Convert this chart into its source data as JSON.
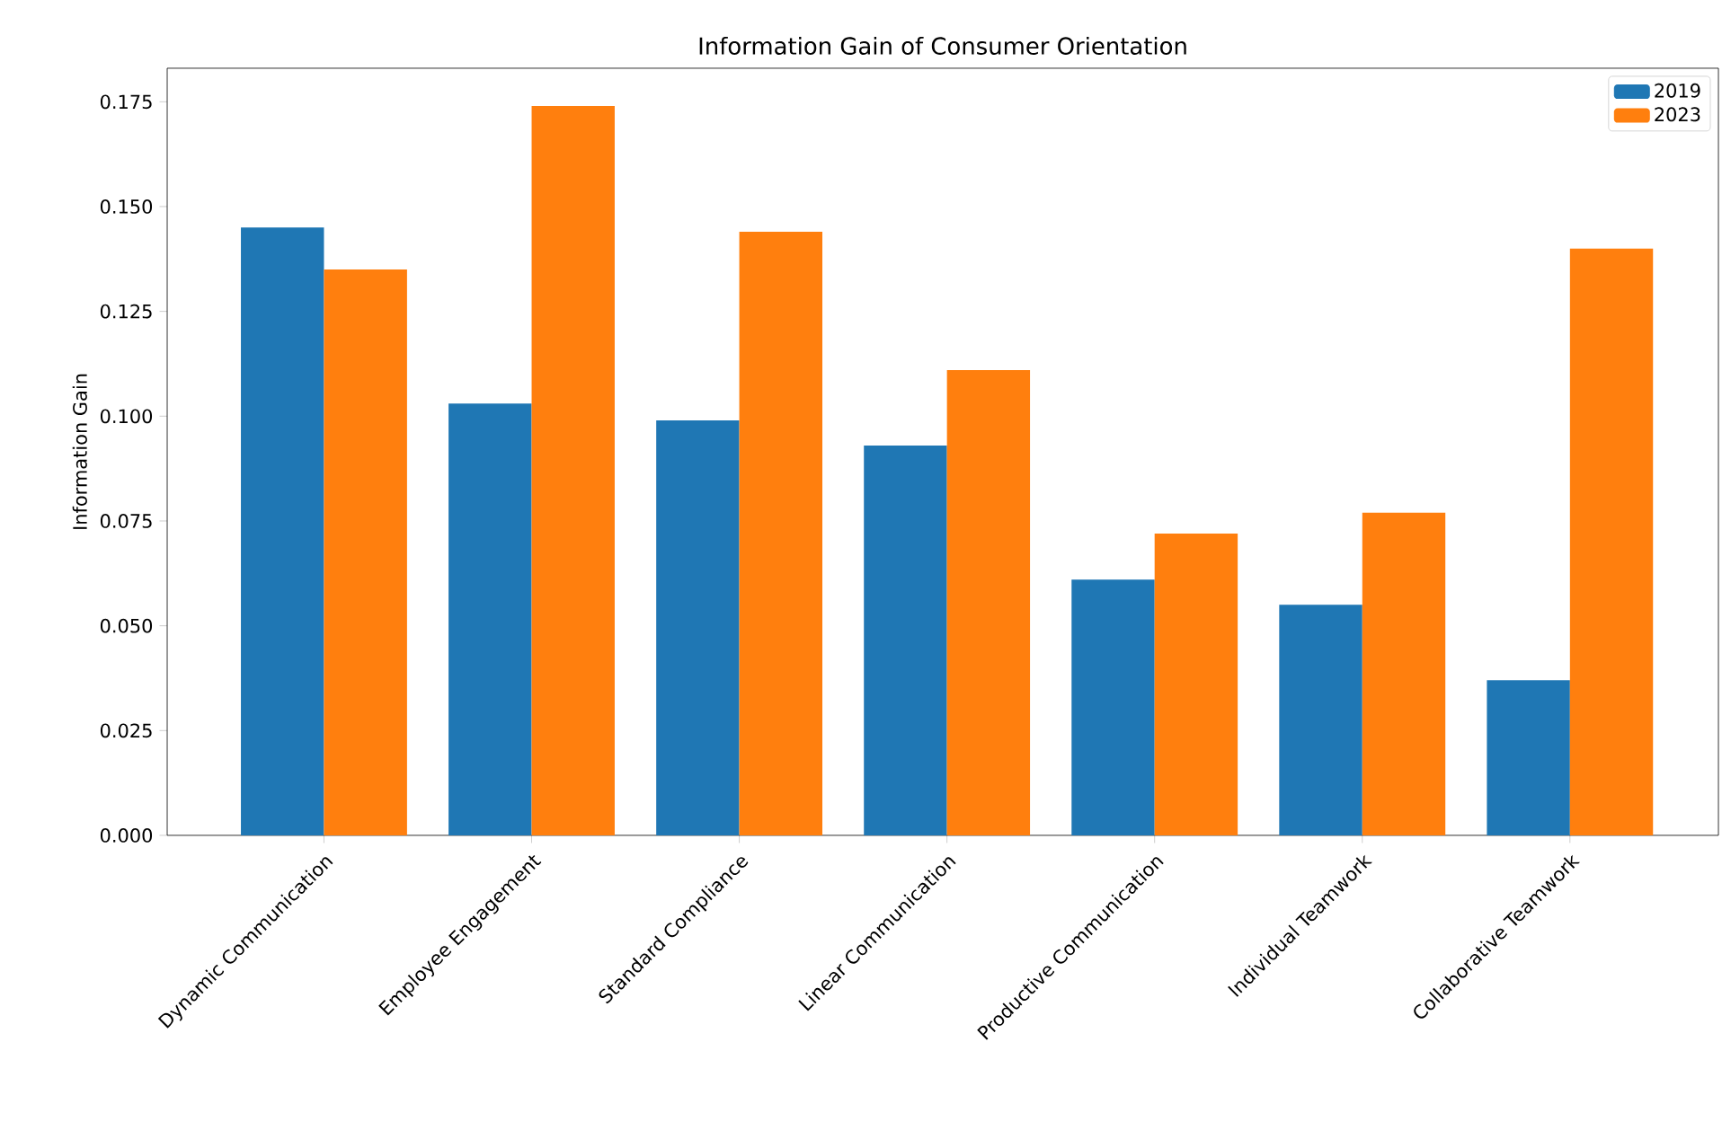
{
  "chart_data": {
    "type": "bar",
    "title": "Information Gain of Consumer Orientation",
    "ylabel": "Information Gain",
    "categories": [
      "Dynamic Communication",
      "Employee Engagement",
      "Standard Compliance",
      "Linear Communication",
      "Productive Communication",
      "Individual Teamwork",
      "Collaborative Teamwork"
    ],
    "series": [
      {
        "name": "2019",
        "color": "#1f77b4",
        "values": [
          0.145,
          0.103,
          0.099,
          0.093,
          0.061,
          0.055,
          0.037
        ]
      },
      {
        "name": "2023",
        "color": "#ff7f0e",
        "values": [
          0.135,
          0.174,
          0.144,
          0.111,
          0.072,
          0.077,
          0.14
        ]
      }
    ],
    "ylim": [
      0,
      0.183
    ],
    "yticks": [
      {
        "value": 0,
        "label": "0.000"
      },
      0.025,
      {
        "value": 0.05,
        "label": "0.050"
      },
      0.075,
      {
        "value": 0.1,
        "label": "0.100"
      },
      0.125,
      {
        "value": 0.15,
        "label": "0.150"
      },
      0.175
    ],
    "legend": "top right",
    "grid": false
  }
}
